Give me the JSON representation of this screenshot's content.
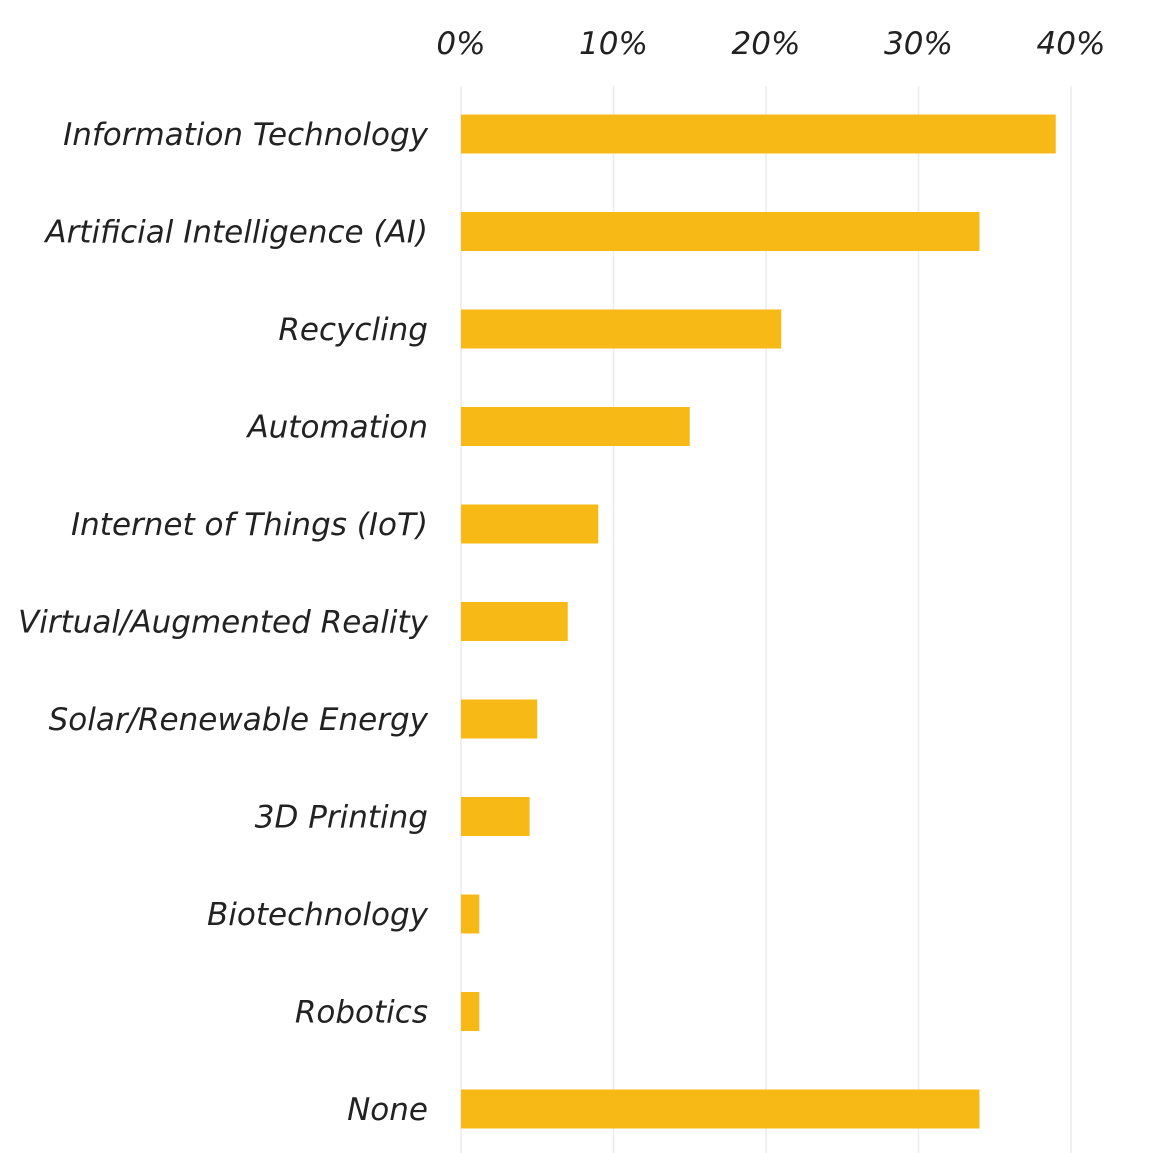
{
  "chart_data": {
    "type": "bar",
    "orientation": "horizontal",
    "categories": [
      "Information Technology",
      "Artificial Intelligence (AI)",
      "Recycling",
      "Automation",
      "Internet of Things (IoT)",
      "Virtual/Augmented Reality",
      "Solar/Renewable Energy",
      "3D Printing",
      "Biotechnology",
      "Robotics",
      "None"
    ],
    "values": [
      39,
      34,
      21,
      15,
      9,
      7,
      5,
      4.5,
      1.2,
      1.2,
      34
    ],
    "unit": "%",
    "xlim": [
      0,
      40
    ],
    "x_ticks": [
      0,
      10,
      20,
      30,
      40
    ],
    "x_tick_labels": [
      "0%",
      "10%",
      "20%",
      "30%",
      "40%"
    ],
    "x_axis_position": "top",
    "grid": true,
    "legend": "none",
    "title": "",
    "xlabel": "",
    "ylabel": "",
    "colors": {
      "bar": "#F7B915",
      "grid": "#ececec",
      "text": "#222222",
      "background": "#ffffff"
    }
  }
}
